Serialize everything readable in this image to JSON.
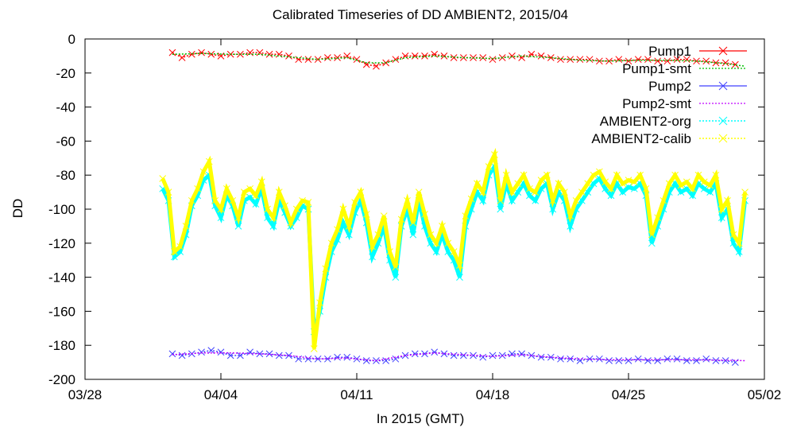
{
  "chart_data": {
    "type": "line",
    "title": "Calibrated Timeseries of DD AMBIENT2, 2015/04",
    "xlabel": "In 2015 (GMT)",
    "ylabel": "DD",
    "x_ticks": [
      "03/28",
      "04/04",
      "04/11",
      "04/18",
      "04/25",
      "05/02"
    ],
    "y_ticks": [
      0,
      -20,
      -40,
      -60,
      -80,
      -100,
      -120,
      -140,
      -160,
      -180,
      -200
    ],
    "x_range_days": [
      0,
      35
    ],
    "ylim": [
      -200,
      0
    ],
    "grid": false,
    "legend_position": "top-right",
    "series": [
      {
        "name": "Pump1",
        "color": "#ff0000",
        "marker": "x",
        "x_days": [
          4.5,
          5.0,
          5.5,
          6.0,
          6.5,
          7.0,
          7.5,
          8.0,
          8.5,
          9.0,
          9.5,
          10.0,
          10.5,
          11.0,
          11.5,
          12.0,
          12.5,
          13.0,
          13.5,
          14.0,
          14.5,
          15.0,
          15.5,
          16.0,
          16.5,
          17.0,
          17.5,
          18.0,
          18.5,
          19.0,
          19.5,
          20.0,
          20.5,
          21.0,
          21.5,
          22.0,
          22.5,
          23.0,
          23.5,
          24.0,
          24.5,
          25.0,
          25.5,
          26.0,
          26.5,
          27.0,
          27.5,
          28.0,
          28.5,
          29.0,
          29.5,
          30.0,
          30.5,
          31.0,
          31.5,
          32.0,
          32.5,
          33.0,
          33.5
        ],
        "values": [
          -8,
          -11,
          -9,
          -8,
          -9,
          -10,
          -9,
          -9,
          -8,
          -8,
          -9,
          -9,
          -10,
          -12,
          -12,
          -12,
          -11,
          -11,
          -10,
          -12,
          -15,
          -16,
          -14,
          -12,
          -10,
          -10,
          -10,
          -9,
          -10,
          -11,
          -11,
          -11,
          -11,
          -12,
          -11,
          -10,
          -11,
          -9,
          -10,
          -11,
          -12,
          -12,
          -12,
          -12,
          -13,
          -13,
          -12,
          -13,
          -12,
          -12,
          -13,
          -13,
          -12,
          -12,
          -13,
          -13,
          -14,
          -14,
          -15
        ]
      },
      {
        "name": "Pump1-smt",
        "color": "#00c000",
        "x_days": [
          4.5,
          6.0,
          7.5,
          9.0,
          10.5,
          12.0,
          13.5,
          14.5,
          15.5,
          16.5,
          18.0,
          19.5,
          21.0,
          22.5,
          24.0,
          25.5,
          27.0,
          28.5,
          30.0,
          31.5,
          33.0,
          34.0
        ],
        "values": [
          -9,
          -8.5,
          -9,
          -9,
          -10.5,
          -12,
          -11,
          -14,
          -14,
          -11,
          -10,
          -11,
          -11.5,
          -10,
          -11,
          -12.5,
          -13,
          -12.5,
          -12.5,
          -13,
          -14.5,
          -16
        ]
      },
      {
        "name": "Pump2",
        "color": "#4040ff",
        "marker": "x",
        "x_days": [
          4.5,
          5.0,
          5.5,
          6.0,
          6.5,
          7.0,
          7.5,
          8.0,
          8.5,
          9.0,
          9.5,
          10.0,
          10.5,
          11.0,
          11.5,
          12.0,
          12.5,
          13.0,
          13.5,
          14.0,
          14.5,
          15.0,
          15.5,
          16.0,
          16.5,
          17.0,
          17.5,
          18.0,
          18.5,
          19.0,
          19.5,
          20.0,
          20.5,
          21.0,
          21.5,
          22.0,
          22.5,
          23.0,
          23.5,
          24.0,
          24.5,
          25.0,
          25.5,
          26.0,
          26.5,
          27.0,
          27.5,
          28.0,
          28.5,
          29.0,
          29.5,
          30.0,
          30.5,
          31.0,
          31.5,
          32.0,
          32.5,
          33.0,
          33.5
        ],
        "values": [
          -185,
          -186,
          -185,
          -184,
          -183,
          -184,
          -186,
          -186,
          -184,
          -185,
          -185,
          -186,
          -186,
          -188,
          -188,
          -188,
          -188,
          -187,
          -187,
          -188,
          -189,
          -189,
          -189,
          -188,
          -186,
          -185,
          -185,
          -184,
          -185,
          -186,
          -186,
          -186,
          -187,
          -186,
          -186,
          -185,
          -185,
          -186,
          -187,
          -187,
          -188,
          -188,
          -189,
          -188,
          -188,
          -189,
          -189,
          -189,
          -188,
          -189,
          -189,
          -188,
          -188,
          -189,
          -189,
          -188,
          -189,
          -189,
          -190
        ]
      },
      {
        "name": "Pump2-smt",
        "color": "#c000ff",
        "x_days": [
          4.5,
          6.0,
          7.5,
          9.0,
          10.5,
          12.0,
          13.5,
          15.0,
          16.5,
          18.0,
          19.5,
          21.0,
          22.5,
          24.0,
          25.5,
          27.0,
          28.5,
          30.0,
          31.5,
          33.0,
          34.0
        ],
        "values": [
          -185.5,
          -184.5,
          -184.5,
          -185,
          -186,
          -188,
          -187.5,
          -189,
          -186,
          -184.5,
          -185.5,
          -186.5,
          -185.5,
          -187,
          -188,
          -188.5,
          -188.5,
          -188.5,
          -188.5,
          -188.8,
          -189
        ]
      },
      {
        "name": "AMBIENT2-org",
        "color": "#00ffff",
        "marker": "x",
        "x_days": [
          4.0,
          4.3,
          4.6,
          4.9,
          5.2,
          5.5,
          5.8,
          6.1,
          6.4,
          6.7,
          7.0,
          7.3,
          7.6,
          7.9,
          8.2,
          8.5,
          8.8,
          9.1,
          9.4,
          9.7,
          10.0,
          10.3,
          10.6,
          10.9,
          11.2,
          11.5,
          11.8,
          12.1,
          12.4,
          12.7,
          13.0,
          13.3,
          13.6,
          13.9,
          14.2,
          14.5,
          14.8,
          15.1,
          15.4,
          15.7,
          16.0,
          16.3,
          16.6,
          16.9,
          17.2,
          17.5,
          17.8,
          18.1,
          18.4,
          18.7,
          19.0,
          19.3,
          19.6,
          19.9,
          20.2,
          20.5,
          20.8,
          21.1,
          21.4,
          21.7,
          22.0,
          22.3,
          22.6,
          22.9,
          23.2,
          23.5,
          23.8,
          24.1,
          24.4,
          24.7,
          25.0,
          25.3,
          25.6,
          25.9,
          26.2,
          26.5,
          26.8,
          27.1,
          27.4,
          27.7,
          28.0,
          28.3,
          28.6,
          28.9,
          29.2,
          29.5,
          29.8,
          30.1,
          30.4,
          30.7,
          31.0,
          31.3,
          31.6,
          31.9,
          32.2,
          32.5,
          32.8,
          33.1,
          33.4,
          33.7,
          34.0
        ],
        "values": [
          -88,
          -95,
          -128,
          -125,
          -115,
          -98,
          -92,
          -83,
          -80,
          -98,
          -105,
          -92,
          -98,
          -110,
          -95,
          -93,
          -97,
          -88,
          -105,
          -110,
          -95,
          -102,
          -110,
          -105,
          -98,
          -100,
          -172,
          -160,
          -140,
          -125,
          -118,
          -108,
          -115,
          -102,
          -95,
          -108,
          -128,
          -120,
          -110,
          -130,
          -140,
          -110,
          -100,
          -115,
          -95,
          -110,
          -120,
          -125,
          -115,
          -125,
          -130,
          -140,
          -110,
          -100,
          -90,
          -95,
          -80,
          -75,
          -100,
          -85,
          -95,
          -90,
          -85,
          -92,
          -95,
          -88,
          -85,
          -100,
          -90,
          -95,
          -110,
          -100,
          -95,
          -90,
          -85,
          -82,
          -88,
          -92,
          -85,
          -90,
          -87,
          -88,
          -85,
          -92,
          -120,
          -110,
          -100,
          -90,
          -85,
          -90,
          -88,
          -92,
          -85,
          -88,
          -90,
          -85,
          -105,
          -100,
          -120,
          -125,
          -95
        ]
      },
      {
        "name": "AMBIENT2-calib",
        "color": "#ffff00",
        "marker": "x",
        "x_days": [
          4.0,
          4.3,
          4.6,
          4.9,
          5.2,
          5.5,
          5.8,
          6.1,
          6.4,
          6.7,
          7.0,
          7.3,
          7.6,
          7.9,
          8.2,
          8.5,
          8.8,
          9.1,
          9.4,
          9.7,
          10.0,
          10.3,
          10.6,
          10.9,
          11.2,
          11.5,
          11.8,
          12.1,
          12.4,
          12.7,
          13.0,
          13.3,
          13.6,
          13.9,
          14.2,
          14.5,
          14.8,
          15.1,
          15.4,
          15.7,
          16.0,
          16.3,
          16.6,
          16.9,
          17.2,
          17.5,
          17.8,
          18.1,
          18.4,
          18.7,
          19.0,
          19.3,
          19.6,
          19.9,
          20.2,
          20.5,
          20.8,
          21.1,
          21.4,
          21.7,
          22.0,
          22.3,
          22.6,
          22.9,
          23.2,
          23.5,
          23.8,
          24.1,
          24.4,
          24.7,
          25.0,
          25.3,
          25.6,
          25.9,
          26.2,
          26.5,
          26.8,
          27.1,
          27.4,
          27.7,
          28.0,
          28.3,
          28.6,
          28.9,
          29.2,
          29.5,
          29.8,
          30.1,
          30.4,
          30.7,
          31.0,
          31.3,
          31.6,
          31.9,
          32.2,
          32.5,
          32.8,
          33.1,
          33.4,
          33.7,
          34.0
        ],
        "values": [
          -82,
          -90,
          -125,
          -122,
          -110,
          -95,
          -88,
          -78,
          -72,
          -95,
          -100,
          -88,
          -95,
          -105,
          -90,
          -88,
          -92,
          -84,
          -100,
          -105,
          -90,
          -98,
          -108,
          -100,
          -95,
          -96,
          -182,
          -155,
          -135,
          -120,
          -112,
          -100,
          -110,
          -96,
          -90,
          -103,
          -122,
          -115,
          -104,
          -125,
          -134,
          -106,
          -95,
          -108,
          -90,
          -103,
          -115,
          -120,
          -110,
          -120,
          -125,
          -133,
          -104,
          -94,
          -85,
          -90,
          -75,
          -68,
          -95,
          -80,
          -90,
          -85,
          -80,
          -88,
          -90,
          -83,
          -80,
          -95,
          -85,
          -90,
          -104,
          -95,
          -90,
          -85,
          -80,
          -78,
          -84,
          -88,
          -80,
          -85,
          -83,
          -84,
          -80,
          -88,
          -115,
          -105,
          -95,
          -85,
          -80,
          -86,
          -84,
          -88,
          -80,
          -84,
          -86,
          -80,
          -100,
          -95,
          -115,
          -120,
          -90
        ]
      }
    ]
  }
}
